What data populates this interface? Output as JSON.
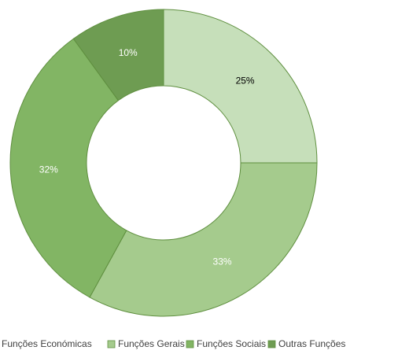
{
  "chart_data": {
    "type": "donut",
    "categories": [
      "Funções Económicas",
      "Funções Gerais",
      "Funções Sociais",
      "Outras Funções"
    ],
    "values": [
      25,
      33,
      32,
      10
    ],
    "value_labels": [
      "25%",
      "33%",
      "32%",
      "10%"
    ],
    "colors": [
      "#c6dfba",
      "#a5cb8d",
      "#82b564",
      "#6e9c52"
    ],
    "label_colors": [
      "#000000",
      "#ffffff",
      "#ffffff",
      "#ffffff"
    ],
    "legend": "bottom"
  }
}
